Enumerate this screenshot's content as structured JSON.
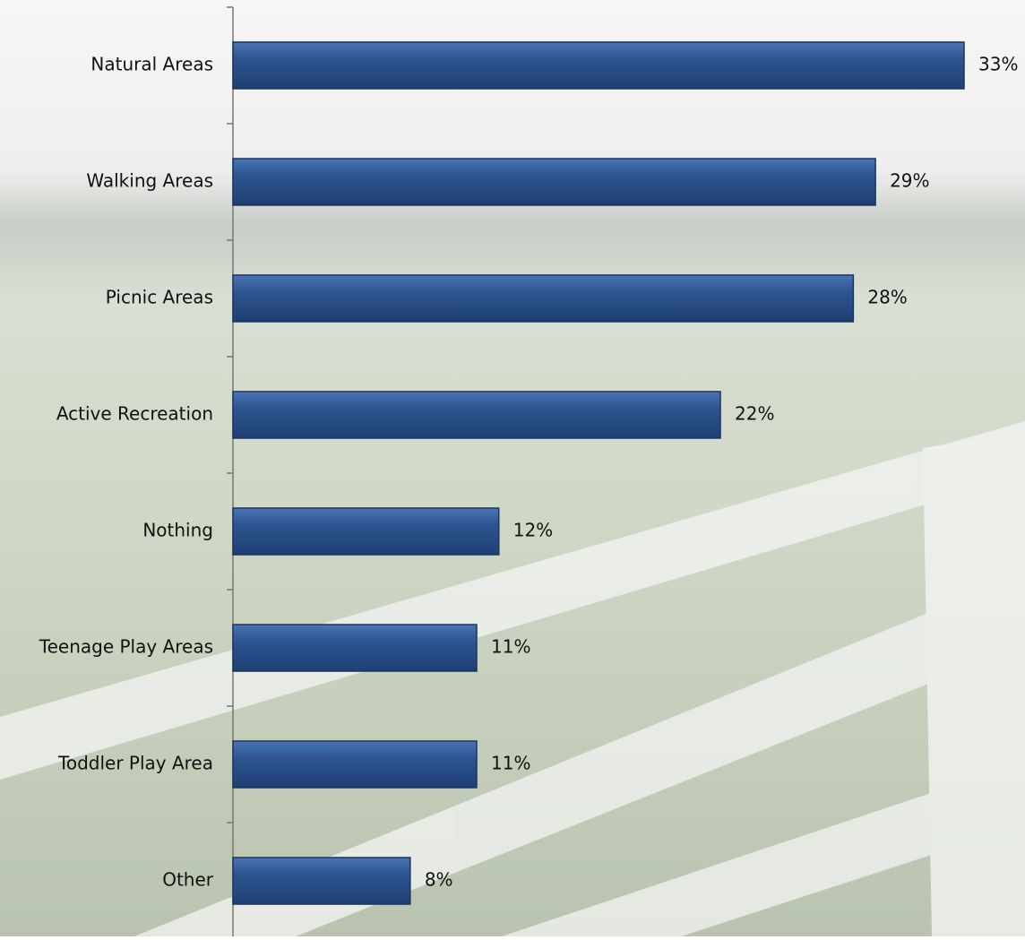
{
  "chart_data": {
    "type": "bar",
    "orientation": "horizontal",
    "categories": [
      "Natural Areas",
      "Walking Areas",
      "Picnic Areas",
      "Active Recreation",
      "Nothing",
      "Teenage Play Areas",
      "Toddler Play Area",
      "Other"
    ],
    "values": [
      33,
      29,
      28,
      22,
      12,
      11,
      11,
      8
    ],
    "value_labels": [
      "33%",
      "29%",
      "28%",
      "22%",
      "12%",
      "11%",
      "11%",
      "8%"
    ],
    "color": "#2d5592"
  }
}
